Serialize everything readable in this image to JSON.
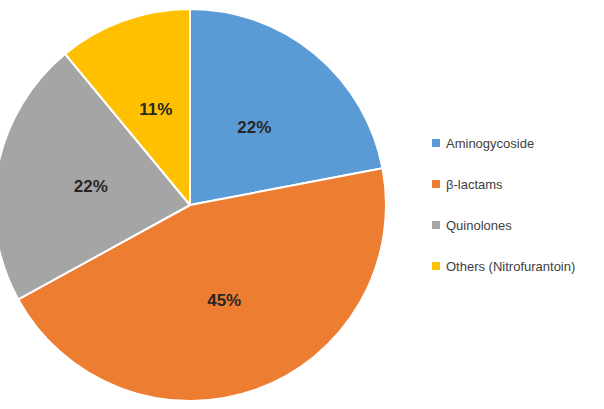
{
  "chart_data": {
    "type": "pie",
    "categories": [
      "Aminogycoside",
      "β-lactams",
      "Quinolones",
      "Others (Nitrofurantoin)"
    ],
    "values": [
      22,
      45,
      22,
      11
    ],
    "value_labels": [
      "22%",
      "45%",
      "22%",
      "11%"
    ],
    "colors": [
      "#5b9bd5",
      "#ed7d31",
      "#a5a5a5",
      "#ffc000"
    ],
    "data_labels": true,
    "legend": "right"
  }
}
